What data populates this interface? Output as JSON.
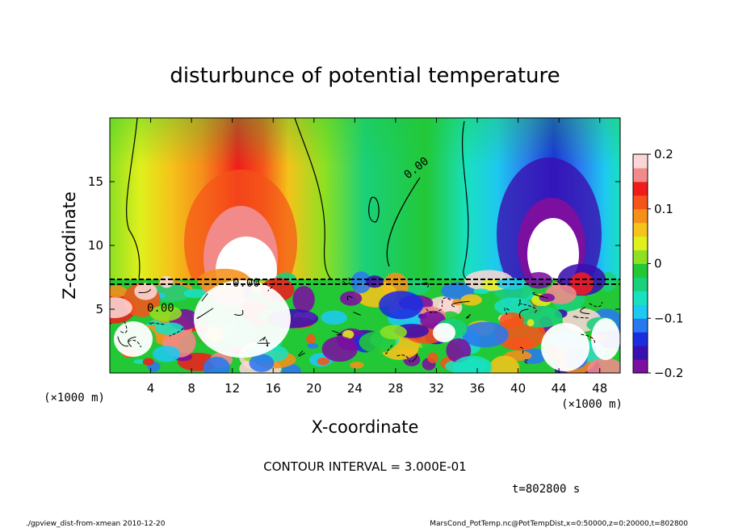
{
  "chart_data": {
    "type": "heatmap",
    "title": "disturbunce of potential temperature",
    "xlabel": "X-coordinate",
    "ylabel": "Z-coordinate",
    "x_unit": "(×1000 m)",
    "y_unit": "(×1000 m)",
    "xlim": [
      0,
      50
    ],
    "ylim": [
      0,
      20
    ],
    "x_ticks": [
      4,
      8,
      12,
      16,
      20,
      24,
      28,
      32,
      36,
      40,
      44,
      48
    ],
    "y_ticks": [
      5,
      10,
      15
    ],
    "colorbar": {
      "range": [
        -0.2,
        0.2
      ],
      "ticks": [
        0.2,
        0.1,
        0,
        -0.1,
        -0.2
      ],
      "tick_labels": [
        "0.2",
        "0.1",
        "0",
        "−0.1",
        "−0.2"
      ],
      "colors": [
        "#7a0fa0",
        "#3a0fb0",
        "#1a2ee0",
        "#2a78f0",
        "#1ec8f0",
        "#19e0c0",
        "#1ad07a",
        "#22c836",
        "#8ee022",
        "#e0f01c",
        "#f5c31a",
        "#f5901a",
        "#f5541a",
        "#f01c1c",
        "#f28a8a",
        "#fbd6d6"
      ]
    },
    "contour_labels": [
      "0.00",
      "0.00",
      "0.00"
    ],
    "upper_field_samples": {
      "x": [
        4,
        8,
        12,
        16,
        20,
        24,
        28,
        32,
        36,
        40,
        44,
        48
      ],
      "values": [
        0.06,
        0.12,
        0.2,
        0.12,
        0.04,
        0.01,
        0.0,
        0.0,
        -0.04,
        -0.12,
        -0.2,
        -0.1
      ]
    },
    "interface_height": 7.4,
    "contour_interval_text": "CONTOUR INTERVAL = 3.000E-01",
    "time_text": "t=802800 s"
  },
  "footer": {
    "left": "./gpview_dist-from-xmean  2010-12-20",
    "right": "MarsCond_PotTemp.nc@PotTempDist,x=0:50000,z=0:20000,t=802800"
  }
}
